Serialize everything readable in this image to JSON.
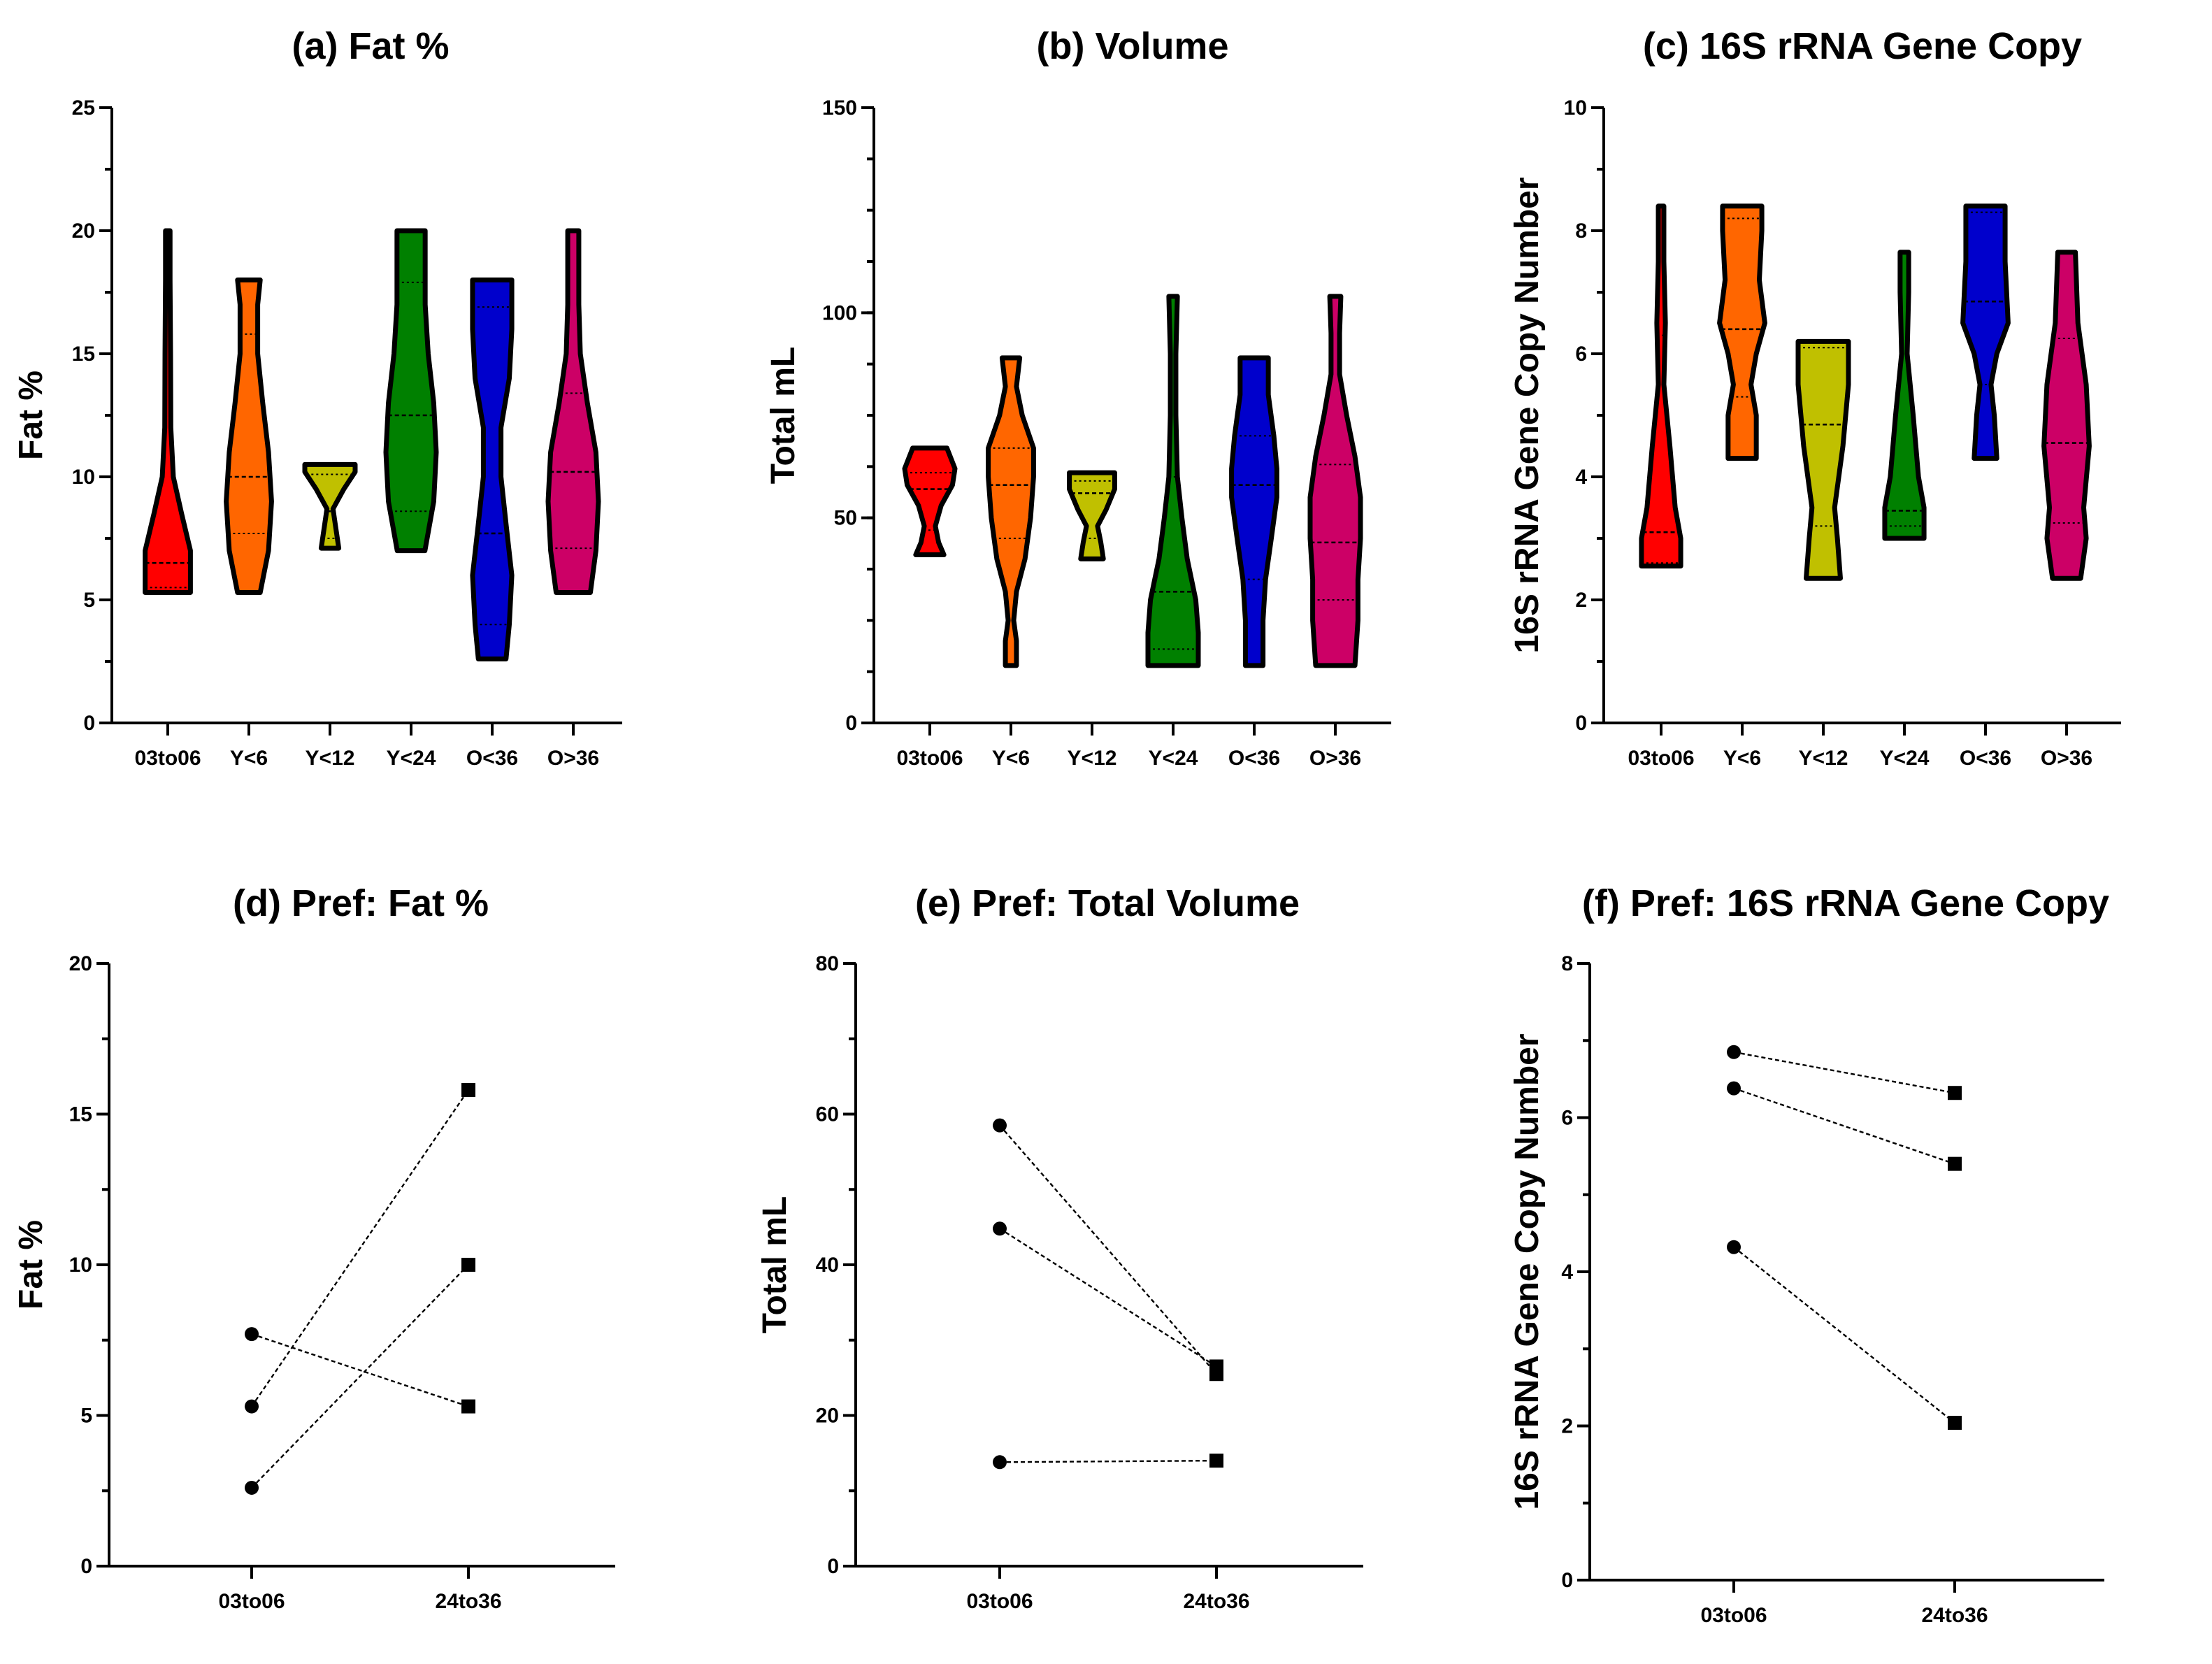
{
  "chart_data": [
    {
      "type": "violin",
      "title": "(a) Fat %",
      "ylabel": "Fat %",
      "ylim": [
        0,
        25
      ],
      "yticks": [
        0,
        5,
        10,
        15,
        20,
        25
      ],
      "minor": 2.5,
      "categories": [
        "03to06",
        "Y<6",
        "Y<12",
        "Y<24",
        "O<36",
        "O>36"
      ],
      "colors": [
        "#ff0000",
        "#ff6600",
        "#c0c000",
        "#008000",
        "#0000cc",
        "#cc0066"
      ],
      "violins": [
        {
          "min": 5.3,
          "max": 20,
          "median": 6.5,
          "q1": 5.5,
          "q3": 14,
          "density": [
            [
              5.3,
              0.9
            ],
            [
              7,
              0.9
            ],
            [
              8.5,
              0.55
            ],
            [
              10,
              0.22
            ],
            [
              12,
              0.12
            ],
            [
              15,
              0.11
            ],
            [
              18,
              0.09
            ],
            [
              20,
              0.09
            ]
          ]
        },
        {
          "min": 5.3,
          "max": 18,
          "median": 10,
          "q1": 7.7,
          "q3": 15.8,
          "density": [
            [
              5.3,
              0.45
            ],
            [
              7,
              0.78
            ],
            [
              9,
              0.9
            ],
            [
              11,
              0.78
            ],
            [
              13,
              0.55
            ],
            [
              15,
              0.35
            ],
            [
              17,
              0.35
            ],
            [
              18,
              0.45
            ]
          ]
        },
        {
          "min": 7.1,
          "max": 10.5,
          "median": 8.6,
          "q1": 7.5,
          "q3": 10.1,
          "density": [
            [
              7.1,
              0.35
            ],
            [
              8,
              0.22
            ],
            [
              8.7,
              0.12
            ],
            [
              9.5,
              0.55
            ],
            [
              10.2,
              1
            ],
            [
              10.5,
              1
            ]
          ]
        },
        {
          "min": 7,
          "max": 20,
          "median": 12.5,
          "q1": 8.6,
          "q3": 17.9,
          "density": [
            [
              7,
              0.55
            ],
            [
              9,
              0.9
            ],
            [
              11,
              1
            ],
            [
              13,
              0.9
            ],
            [
              15,
              0.68
            ],
            [
              17,
              0.56
            ],
            [
              19,
              0.56
            ],
            [
              20,
              0.56
            ]
          ]
        },
        {
          "min": 2.6,
          "max": 18,
          "median": 7.7,
          "q1": 4,
          "q3": 16.9,
          "density": [
            [
              2.6,
              0.55
            ],
            [
              4,
              0.68
            ],
            [
              6,
              0.78
            ],
            [
              8,
              0.56
            ],
            [
              10,
              0.35
            ],
            [
              12,
              0.35
            ],
            [
              14,
              0.68
            ],
            [
              16,
              0.78
            ],
            [
              18,
              0.78
            ]
          ]
        },
        {
          "min": 5.3,
          "max": 20,
          "median": 10.2,
          "q1": 7.1,
          "q3": 13.4,
          "density": [
            [
              5.3,
              0.68
            ],
            [
              7,
              0.9
            ],
            [
              9,
              1
            ],
            [
              11,
              0.9
            ],
            [
              13,
              0.56
            ],
            [
              15,
              0.28
            ],
            [
              17,
              0.22
            ],
            [
              20,
              0.22
            ]
          ]
        }
      ]
    },
    {
      "type": "violin",
      "title": "(b) Volume",
      "ylabel": "Total  mL",
      "ylim": [
        0,
        150
      ],
      "yticks": [
        0,
        50,
        100,
        150
      ],
      "minor": 12.5,
      "categories": [
        "03to06",
        "Y<6",
        "Y<12",
        "Y<24",
        "O<36",
        "O>36"
      ],
      "colors": [
        "#ff0000",
        "#ff6600",
        "#c0c000",
        "#008000",
        "#0000cc",
        "#cc0066"
      ],
      "violins": [
        {
          "min": 41,
          "max": 67,
          "median": 57,
          "q1": 47,
          "q3": 61,
          "density": [
            [
              41,
              0.56
            ],
            [
              44,
              0.35
            ],
            [
              48,
              0.22
            ],
            [
              53,
              0.45
            ],
            [
              58,
              0.9
            ],
            [
              62,
              1
            ],
            [
              67,
              0.68
            ]
          ]
        },
        {
          "min": 14,
          "max": 89,
          "median": 58,
          "q1": 45,
          "q3": 67,
          "density": [
            [
              14,
              0.22
            ],
            [
              20,
              0.22
            ],
            [
              25,
              0.11
            ],
            [
              32,
              0.22
            ],
            [
              40,
              0.56
            ],
            [
              50,
              0.78
            ],
            [
              60,
              0.9
            ],
            [
              67,
              0.9
            ],
            [
              75,
              0.45
            ],
            [
              82,
              0.22
            ],
            [
              89,
              0.35
            ]
          ]
        },
        {
          "min": 40,
          "max": 61,
          "median": 56,
          "q1": 45,
          "q3": 59,
          "density": [
            [
              40,
              0.45
            ],
            [
              44,
              0.35
            ],
            [
              48,
              0.22
            ],
            [
              52,
              0.56
            ],
            [
              57,
              0.9
            ],
            [
              61,
              0.9
            ]
          ]
        },
        {
          "min": 14,
          "max": 104,
          "median": 32,
          "q1": 18,
          "q3": 60,
          "density": [
            [
              14,
              1
            ],
            [
              22,
              1
            ],
            [
              30,
              0.9
            ],
            [
              40,
              0.56
            ],
            [
              50,
              0.35
            ],
            [
              60,
              0.17
            ],
            [
              75,
              0.11
            ],
            [
              90,
              0.11
            ],
            [
              104,
              0.17
            ]
          ]
        },
        {
          "min": 14,
          "max": 89,
          "median": 58,
          "q1": 35,
          "q3": 70,
          "density": [
            [
              14,
              0.35
            ],
            [
              25,
              0.35
            ],
            [
              35,
              0.45
            ],
            [
              45,
              0.68
            ],
            [
              55,
              0.9
            ],
            [
              62,
              0.9
            ],
            [
              70,
              0.78
            ],
            [
              80,
              0.56
            ],
            [
              89,
              0.56
            ]
          ]
        },
        {
          "min": 14,
          "max": 104,
          "median": 44,
          "q1": 30,
          "q3": 63,
          "density": [
            [
              14,
              0.78
            ],
            [
              25,
              0.9
            ],
            [
              35,
              0.9
            ],
            [
              45,
              1
            ],
            [
              55,
              1
            ],
            [
              65,
              0.78
            ],
            [
              75,
              0.45
            ],
            [
              85,
              0.17
            ],
            [
              95,
              0.17
            ],
            [
              104,
              0.22
            ]
          ]
        }
      ]
    },
    {
      "type": "violin",
      "title": "(c) 16S rRNA Gene Copy",
      "ylabel": "16S rRNA Gene Copy Number",
      "ylim": [
        0,
        10
      ],
      "yticks": [
        0,
        2,
        4,
        6,
        8,
        10
      ],
      "minor": 1,
      "categories": [
        "03to06",
        "Y<6",
        "Y<12",
        "Y<24",
        "O<36",
        "O>36"
      ],
      "colors": [
        "#ff0000",
        "#ff6600",
        "#c0c000",
        "#008000",
        "#0000cc",
        "#cc0066"
      ],
      "violins": [
        {
          "min": 2.55,
          "max": 8.4,
          "median": 3.1,
          "q1": 2.6,
          "q3": 6.3,
          "density": [
            [
              2.55,
              0.78
            ],
            [
              3,
              0.78
            ],
            [
              3.5,
              0.56
            ],
            [
              4.5,
              0.35
            ],
            [
              5.5,
              0.11
            ],
            [
              6.5,
              0.17
            ],
            [
              7.5,
              0.11
            ],
            [
              8.4,
              0.11
            ]
          ]
        },
        {
          "min": 4.3,
          "max": 8.4,
          "median": 6.4,
          "q1": 5.3,
          "q3": 8.2,
          "density": [
            [
              4.3,
              0.56
            ],
            [
              5,
              0.56
            ],
            [
              5.5,
              0.35
            ],
            [
              6,
              0.56
            ],
            [
              6.5,
              0.9
            ],
            [
              7.2,
              0.68
            ],
            [
              8,
              0.78
            ],
            [
              8.4,
              0.78
            ]
          ]
        },
        {
          "min": 2.35,
          "max": 6.2,
          "median": 4.85,
          "q1": 3.2,
          "q3": 6.1,
          "density": [
            [
              2.35,
              0.68
            ],
            [
              3,
              0.56
            ],
            [
              3.5,
              0.45
            ],
            [
              4.5,
              0.78
            ],
            [
              5.5,
              1
            ],
            [
              6.2,
              1
            ]
          ]
        },
        {
          "min": 3,
          "max": 7.65,
          "median": 3.45,
          "q1": 3.2,
          "q3": 6.5,
          "density": [
            [
              3,
              0.78
            ],
            [
              3.5,
              0.78
            ],
            [
              4,
              0.56
            ],
            [
              5,
              0.35
            ],
            [
              6,
              0.11
            ],
            [
              7,
              0.17
            ],
            [
              7.65,
              0.17
            ]
          ]
        },
        {
          "min": 4.3,
          "max": 8.4,
          "median": 6.85,
          "q1": 5.5,
          "q3": 8.3,
          "density": [
            [
              4.3,
              0.45
            ],
            [
              5,
              0.35
            ],
            [
              5.5,
              0.22
            ],
            [
              6,
              0.45
            ],
            [
              6.5,
              0.9
            ],
            [
              7.5,
              0.78
            ],
            [
              8.4,
              0.78
            ]
          ]
        },
        {
          "min": 2.35,
          "max": 7.65,
          "median": 4.55,
          "q1": 3.25,
          "q3": 6.25,
          "density": [
            [
              2.35,
              0.56
            ],
            [
              3,
              0.78
            ],
            [
              3.5,
              0.68
            ],
            [
              4.5,
              0.9
            ],
            [
              5.5,
              0.78
            ],
            [
              6.5,
              0.45
            ],
            [
              7.65,
              0.35
            ]
          ]
        }
      ]
    },
    {
      "type": "line",
      "title": "(d) Pref: Fat %",
      "ylabel": "Fat %",
      "ylim": [
        0,
        20
      ],
      "yticks": [
        0,
        5,
        10,
        15,
        20
      ],
      "minor": 2.5,
      "categories": [
        "03to06",
        "24to36"
      ],
      "pairs": [
        [
          7.7,
          5.3
        ],
        [
          5.3,
          15.8
        ],
        [
          2.6,
          10.0
        ]
      ]
    },
    {
      "type": "line",
      "title": "(e) Pref: Total  Volume",
      "ylabel": "Total mL",
      "ylim": [
        0,
        80
      ],
      "yticks": [
        0,
        20,
        40,
        60,
        80
      ],
      "minor": 10,
      "categories": [
        "03to06",
        "24to36"
      ],
      "pairs": [
        [
          58.5,
          25.5
        ],
        [
          44.8,
          26.5
        ],
        [
          13.8,
          14.0
        ]
      ]
    },
    {
      "type": "line",
      "title": "(f) Pref: 16S rRNA Gene Copy",
      "ylabel": "16S rRNA Gene Copy Number",
      "ylim": [
        0,
        8
      ],
      "yticks": [
        0,
        2,
        4,
        6,
        8
      ],
      "minor": 1,
      "categories": [
        "03to06",
        "24to36"
      ],
      "pairs": [
        [
          6.85,
          6.32
        ],
        [
          6.38,
          5.4
        ],
        [
          4.32,
          2.04
        ]
      ]
    }
  ]
}
